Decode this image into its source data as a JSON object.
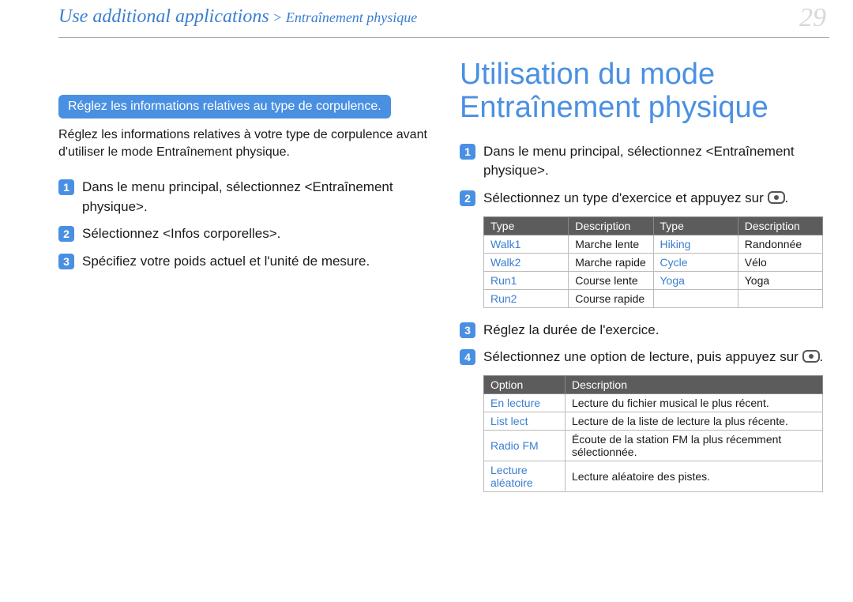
{
  "page_number": "29",
  "breadcrumb": {
    "main": "Use additional applications",
    "sep": " > ",
    "sub": "Entraînement physique"
  },
  "left": {
    "pill": "Réglez les informations relatives au type de corpulence.",
    "desc": "Réglez les informations relatives à votre type de corpulence avant d'utiliser le mode Entraînement physique.",
    "steps": [
      "Dans le menu principal, sélectionnez <Entraînement physique>.",
      "Sélectionnez <Infos corporelles>.",
      "Spécifiez votre poids actuel et l'unité de mesure."
    ]
  },
  "right": {
    "title_line1": "Utilisation du mode",
    "title_line2": "Entraînement physique",
    "step1": "Dans le menu principal, sélectionnez <Entraînement physique>.",
    "step2_pre": "Sélectionnez un type d'exercice et appuyez sur ",
    "step2_post": ".",
    "table1": {
      "headers": [
        "Type",
        "Description",
        "Type",
        "Description"
      ],
      "rows": [
        [
          "Walk1",
          "Marche lente",
          "Hiking",
          "Randonnée"
        ],
        [
          "Walk2",
          "Marche rapide",
          "Cycle",
          "Vélo"
        ],
        [
          "Run1",
          "Course lente",
          "Yoga",
          "Yoga"
        ],
        [
          "Run2",
          "Course rapide",
          "",
          ""
        ]
      ]
    },
    "step3": "Réglez la durée de l'exercice.",
    "step4_pre": "Sélectionnez une option de lecture, puis appuyez sur ",
    "step4_post": ".",
    "table2": {
      "headers": [
        "Option",
        "Description"
      ],
      "rows": [
        [
          "En lecture",
          "Lecture du fichier musical le plus récent."
        ],
        [
          "List lect",
          "Lecture de la liste de lecture la plus récente."
        ],
        [
          "Radio FM",
          "Écoute de la station FM la plus récemment sélectionnée."
        ],
        [
          "Lecture aléatoire",
          "Lecture aléatoire des pistes."
        ]
      ]
    }
  },
  "colors": {
    "accent": "#4a90e2",
    "link": "#3a7ed0",
    "header_bg": "#5c5c5c",
    "page_num": "#d8d8d8"
  }
}
